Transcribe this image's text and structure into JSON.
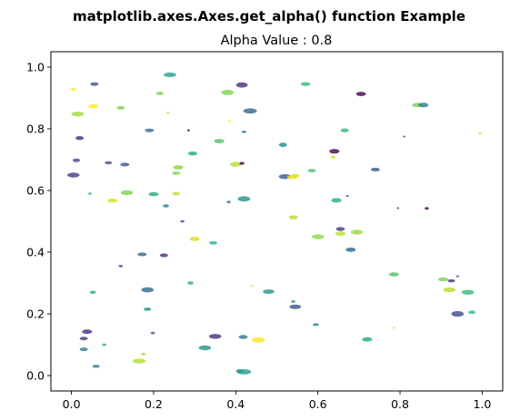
{
  "chart_data": {
    "type": "scatter",
    "title": "matplotlib.axes.Axes.get_alpha() function Example",
    "subtitle": "Alpha Value : 0.8",
    "xlabel": "",
    "ylabel": "",
    "xlim": [
      -0.05,
      1.05
    ],
    "ylim": [
      -0.05,
      1.05
    ],
    "xticks": [
      "0.0",
      "0.2",
      "0.4",
      "0.6",
      "0.8",
      "1.0"
    ],
    "yticks": [
      "0.0",
      "0.2",
      "0.4",
      "0.6",
      "0.8",
      "1.0"
    ],
    "grid": false,
    "alpha": 0.8,
    "colormap": "viridis",
    "points": [
      {
        "x": 0.24,
        "y": 0.975,
        "c": "#1f9e89",
        "w": 0.03,
        "h": 0.015
      },
      {
        "x": 0.056,
        "y": 0.945,
        "c": "#3b528b",
        "w": 0.02,
        "h": 0.012
      },
      {
        "x": 0.005,
        "y": 0.928,
        "c": "#fde725",
        "w": 0.015,
        "h": 0.009
      },
      {
        "x": 0.215,
        "y": 0.915,
        "c": "#7ad151",
        "w": 0.018,
        "h": 0.011
      },
      {
        "x": 0.38,
        "y": 0.918,
        "c": "#7ad151",
        "w": 0.03,
        "h": 0.017
      },
      {
        "x": 0.415,
        "y": 0.942,
        "c": "#472d7b",
        "w": 0.028,
        "h": 0.017
      },
      {
        "x": 0.57,
        "y": 0.945,
        "c": "#35b779",
        "w": 0.023,
        "h": 0.013
      },
      {
        "x": 0.705,
        "y": 0.913,
        "c": "#440154",
        "w": 0.024,
        "h": 0.014
      },
      {
        "x": 0.053,
        "y": 0.873,
        "c": "#fde725",
        "w": 0.025,
        "h": 0.014
      },
      {
        "x": 0.12,
        "y": 0.868,
        "c": "#7ad151",
        "w": 0.02,
        "h": 0.011
      },
      {
        "x": 0.015,
        "y": 0.848,
        "c": "#a0da39",
        "w": 0.03,
        "h": 0.016
      },
      {
        "x": 0.235,
        "y": 0.852,
        "c": "#a0da39",
        "w": 0.006,
        "h": 0.006
      },
      {
        "x": 0.435,
        "y": 0.858,
        "c": "#31688e",
        "w": 0.033,
        "h": 0.017
      },
      {
        "x": 0.385,
        "y": 0.825,
        "c": "#fde725",
        "w": 0.008,
        "h": 0.006
      },
      {
        "x": 0.842,
        "y": 0.877,
        "c": "#7ad151",
        "w": 0.025,
        "h": 0.014
      },
      {
        "x": 0.857,
        "y": 0.877,
        "c": "#2a788e",
        "w": 0.025,
        "h": 0.015
      },
      {
        "x": 0.19,
        "y": 0.795,
        "c": "#31688e",
        "w": 0.022,
        "h": 0.012
      },
      {
        "x": 0.285,
        "y": 0.795,
        "c": "#440154",
        "w": 0.006,
        "h": 0.007
      },
      {
        "x": 0.42,
        "y": 0.79,
        "c": "#2a788e",
        "w": 0.012,
        "h": 0.008
      },
      {
        "x": 0.665,
        "y": 0.795,
        "c": "#35b779",
        "w": 0.02,
        "h": 0.013
      },
      {
        "x": 0.81,
        "y": 0.775,
        "c": "#3b528b",
        "w": 0.006,
        "h": 0.006
      },
      {
        "x": 0.995,
        "y": 0.785,
        "c": "#d2e21b",
        "w": 0.009,
        "h": 0.006
      },
      {
        "x": 0.02,
        "y": 0.77,
        "c": "#482878",
        "w": 0.02,
        "h": 0.013
      },
      {
        "x": 0.36,
        "y": 0.76,
        "c": "#4ac16d",
        "w": 0.025,
        "h": 0.014
      },
      {
        "x": 0.515,
        "y": 0.748,
        "c": "#21918c",
        "w": 0.02,
        "h": 0.014
      },
      {
        "x": 0.295,
        "y": 0.72,
        "c": "#22a884",
        "w": 0.022,
        "h": 0.013
      },
      {
        "x": 0.64,
        "y": 0.727,
        "c": "#440154",
        "w": 0.025,
        "h": 0.015
      },
      {
        "x": 0.012,
        "y": 0.698,
        "c": "#3e4a89",
        "w": 0.018,
        "h": 0.012
      },
      {
        "x": 0.09,
        "y": 0.69,
        "c": "#3e4a89",
        "w": 0.018,
        "h": 0.01
      },
      {
        "x": 0.13,
        "y": 0.684,
        "c": "#3b528b",
        "w": 0.022,
        "h": 0.012
      },
      {
        "x": 0.26,
        "y": 0.675,
        "c": "#86d549",
        "w": 0.025,
        "h": 0.014
      },
      {
        "x": 0.255,
        "y": 0.656,
        "c": "#86d549",
        "w": 0.02,
        "h": 0.011
      },
      {
        "x": 0.4,
        "y": 0.685,
        "c": "#b5de2b",
        "w": 0.028,
        "h": 0.016
      },
      {
        "x": 0.415,
        "y": 0.688,
        "c": "#440154",
        "w": 0.012,
        "h": 0.01
      },
      {
        "x": 0.637,
        "y": 0.708,
        "c": "#d2e21b",
        "w": 0.012,
        "h": 0.008
      },
      {
        "x": 0.74,
        "y": 0.668,
        "c": "#3b528b",
        "w": 0.022,
        "h": 0.012
      },
      {
        "x": 0.585,
        "y": 0.664,
        "c": "#4ac16d",
        "w": 0.02,
        "h": 0.011
      },
      {
        "x": 0.005,
        "y": 0.65,
        "c": "#443a83",
        "w": 0.03,
        "h": 0.016
      },
      {
        "x": 0.52,
        "y": 0.645,
        "c": "#3b528b",
        "w": 0.03,
        "h": 0.016
      },
      {
        "x": 0.537,
        "y": 0.643,
        "c": "#fde725",
        "w": 0.025,
        "h": 0.013
      },
      {
        "x": 0.545,
        "y": 0.648,
        "c": "#d8e219",
        "w": 0.02,
        "h": 0.012
      },
      {
        "x": 0.045,
        "y": 0.59,
        "c": "#1f9e89",
        "w": 0.008,
        "h": 0.007
      },
      {
        "x": 0.135,
        "y": 0.593,
        "c": "#7ad151",
        "w": 0.03,
        "h": 0.016
      },
      {
        "x": 0.2,
        "y": 0.588,
        "c": "#22a884",
        "w": 0.025,
        "h": 0.013
      },
      {
        "x": 0.255,
        "y": 0.59,
        "c": "#b5de2b",
        "w": 0.018,
        "h": 0.011
      },
      {
        "x": 0.1,
        "y": 0.567,
        "c": "#d2e21b",
        "w": 0.025,
        "h": 0.013
      },
      {
        "x": 0.23,
        "y": 0.55,
        "c": "#26828e",
        "w": 0.015,
        "h": 0.01
      },
      {
        "x": 0.383,
        "y": 0.563,
        "c": "#2a788e",
        "w": 0.01,
        "h": 0.008
      },
      {
        "x": 0.42,
        "y": 0.573,
        "c": "#21918c",
        "w": 0.03,
        "h": 0.017
      },
      {
        "x": 0.645,
        "y": 0.568,
        "c": "#22a884",
        "w": 0.025,
        "h": 0.015
      },
      {
        "x": 0.672,
        "y": 0.582,
        "c": "#31688e",
        "w": 0.008,
        "h": 0.006
      },
      {
        "x": 0.795,
        "y": 0.543,
        "c": "#3e4a89",
        "w": 0.006,
        "h": 0.006
      },
      {
        "x": 0.865,
        "y": 0.542,
        "c": "#440154",
        "w": 0.01,
        "h": 0.008
      },
      {
        "x": 0.27,
        "y": 0.5,
        "c": "#3b528b",
        "w": 0.01,
        "h": 0.008
      },
      {
        "x": 0.54,
        "y": 0.513,
        "c": "#b5de2b",
        "w": 0.022,
        "h": 0.013
      },
      {
        "x": 0.655,
        "y": 0.475,
        "c": "#443983",
        "w": 0.022,
        "h": 0.013
      },
      {
        "x": 0.655,
        "y": 0.46,
        "c": "#b5de2b",
        "w": 0.025,
        "h": 0.014
      },
      {
        "x": 0.695,
        "y": 0.465,
        "c": "#a0da39",
        "w": 0.03,
        "h": 0.016
      },
      {
        "x": 0.6,
        "y": 0.45,
        "c": "#8fd744",
        "w": 0.03,
        "h": 0.016
      },
      {
        "x": 0.3,
        "y": 0.443,
        "c": "#d8e219",
        "w": 0.025,
        "h": 0.015
      },
      {
        "x": 0.345,
        "y": 0.43,
        "c": "#2ab07f",
        "w": 0.02,
        "h": 0.011
      },
      {
        "x": 0.68,
        "y": 0.408,
        "c": "#31688e",
        "w": 0.025,
        "h": 0.014
      },
      {
        "x": 0.172,
        "y": 0.393,
        "c": "#31688e",
        "w": 0.022,
        "h": 0.012
      },
      {
        "x": 0.225,
        "y": 0.39,
        "c": "#482878",
        "w": 0.02,
        "h": 0.012
      },
      {
        "x": 0.12,
        "y": 0.355,
        "c": "#3b528b",
        "w": 0.01,
        "h": 0.008
      },
      {
        "x": 0.785,
        "y": 0.328,
        "c": "#4ac16d",
        "w": 0.025,
        "h": 0.013
      },
      {
        "x": 0.905,
        "y": 0.312,
        "c": "#7ad151",
        "w": 0.025,
        "h": 0.013
      },
      {
        "x": 0.925,
        "y": 0.307,
        "c": "#472d7b",
        "w": 0.018,
        "h": 0.01
      },
      {
        "x": 0.94,
        "y": 0.322,
        "c": "#3b528b",
        "w": 0.008,
        "h": 0.006
      },
      {
        "x": 0.92,
        "y": 0.278,
        "c": "#b5de2b",
        "w": 0.03,
        "h": 0.016
      },
      {
        "x": 0.965,
        "y": 0.27,
        "c": "#35b779",
        "w": 0.03,
        "h": 0.016
      },
      {
        "x": 0.29,
        "y": 0.3,
        "c": "#35b779",
        "w": 0.015,
        "h": 0.011
      },
      {
        "x": 0.44,
        "y": 0.29,
        "c": "#fde725",
        "w": 0.008,
        "h": 0.007
      },
      {
        "x": 0.48,
        "y": 0.272,
        "c": "#21918c",
        "w": 0.028,
        "h": 0.014
      },
      {
        "x": 0.052,
        "y": 0.27,
        "c": "#22a884",
        "w": 0.015,
        "h": 0.01
      },
      {
        "x": 0.185,
        "y": 0.278,
        "c": "#31688e",
        "w": 0.03,
        "h": 0.017
      },
      {
        "x": 0.54,
        "y": 0.24,
        "c": "#26828e",
        "w": 0.01,
        "h": 0.008
      },
      {
        "x": 0.545,
        "y": 0.223,
        "c": "#3b528b",
        "w": 0.028,
        "h": 0.015
      },
      {
        "x": 0.185,
        "y": 0.215,
        "c": "#21918c",
        "w": 0.018,
        "h": 0.011
      },
      {
        "x": 0.94,
        "y": 0.2,
        "c": "#3e4a89",
        "w": 0.03,
        "h": 0.018
      },
      {
        "x": 0.975,
        "y": 0.205,
        "c": "#35b779",
        "w": 0.018,
        "h": 0.011
      },
      {
        "x": 0.595,
        "y": 0.165,
        "c": "#26828e",
        "w": 0.015,
        "h": 0.009
      },
      {
        "x": 0.785,
        "y": 0.155,
        "c": "#d2e21b",
        "w": 0.006,
        "h": 0.006
      },
      {
        "x": 0.038,
        "y": 0.142,
        "c": "#482878",
        "w": 0.025,
        "h": 0.014
      },
      {
        "x": 0.198,
        "y": 0.138,
        "c": "#3b528b",
        "w": 0.01,
        "h": 0.008
      },
      {
        "x": 0.03,
        "y": 0.12,
        "c": "#472d7b",
        "w": 0.02,
        "h": 0.011
      },
      {
        "x": 0.35,
        "y": 0.127,
        "c": "#472d7b",
        "w": 0.03,
        "h": 0.016
      },
      {
        "x": 0.418,
        "y": 0.125,
        "c": "#2a788e",
        "w": 0.022,
        "h": 0.013
      },
      {
        "x": 0.455,
        "y": 0.115,
        "c": "#fde725",
        "w": 0.032,
        "h": 0.018
      },
      {
        "x": 0.72,
        "y": 0.117,
        "c": "#22a884",
        "w": 0.025,
        "h": 0.014
      },
      {
        "x": 0.08,
        "y": 0.1,
        "c": "#22a884",
        "w": 0.01,
        "h": 0.008
      },
      {
        "x": 0.03,
        "y": 0.085,
        "c": "#2a788e",
        "w": 0.02,
        "h": 0.012
      },
      {
        "x": 0.325,
        "y": 0.09,
        "c": "#21918c",
        "w": 0.03,
        "h": 0.016
      },
      {
        "x": 0.175,
        "y": 0.07,
        "c": "#a0da39",
        "w": 0.01,
        "h": 0.008
      },
      {
        "x": 0.165,
        "y": 0.047,
        "c": "#b5de2b",
        "w": 0.032,
        "h": 0.016
      },
      {
        "x": 0.06,
        "y": 0.03,
        "c": "#2a788e",
        "w": 0.018,
        "h": 0.01
      },
      {
        "x": 0.41,
        "y": 0.015,
        "c": "#25848e",
        "w": 0.018,
        "h": 0.011
      },
      {
        "x": 0.42,
        "y": 0.012,
        "c": "#1f9e89",
        "w": 0.035,
        "h": 0.017
      }
    ]
  }
}
